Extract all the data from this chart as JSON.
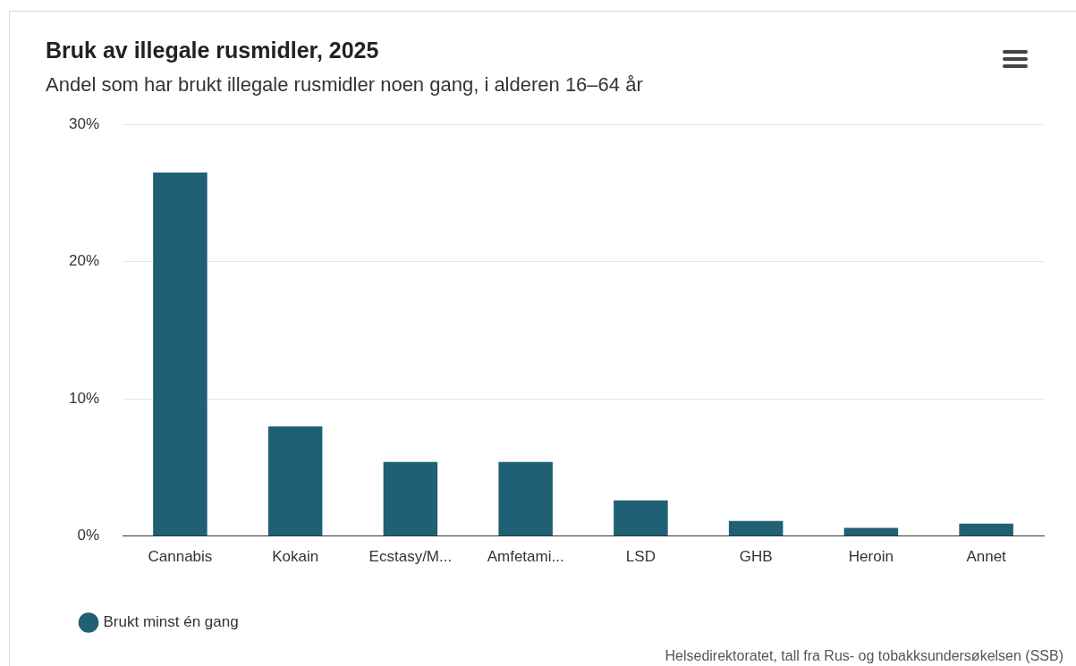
{
  "chart_data": {
    "type": "bar",
    "title": "Bruk av illegale rusmidler, 2025",
    "subtitle": "Andel som har brukt illegale rusmidler noen gang, i alderen 16–64 år",
    "categories": [
      "Cannabis",
      "Kokain",
      "Ecstasy/M...",
      "Amfetami...",
      "LSD",
      "GHB",
      "Heroin",
      "Annet"
    ],
    "series": [
      {
        "name": "Brukt minst én gang",
        "color": "#1f6075",
        "values": [
          26.5,
          8.0,
          5.4,
          5.4,
          2.6,
          1.1,
          0.6,
          0.9
        ]
      }
    ],
    "ylim": [
      0,
      30
    ],
    "yticks": [
      {
        "value": 0,
        "label": "0%"
      },
      {
        "value": 10,
        "label": "10%"
      },
      {
        "value": 20,
        "label": "20%"
      },
      {
        "value": 30,
        "label": "30%"
      }
    ],
    "grid": "y",
    "legend": "bottom left",
    "annotations": [
      "Helsedirektoratet, tall fra Rus- og tobakksundersøkelsen (SSB)"
    ]
  }
}
